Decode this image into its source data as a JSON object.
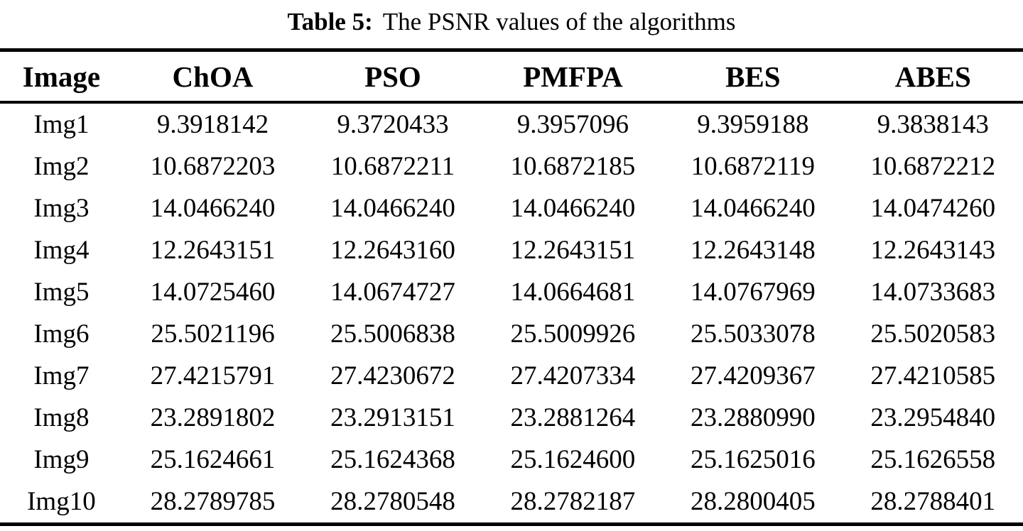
{
  "caption": {
    "label": "Table 5:",
    "text": "The PSNR values of the algorithms"
  },
  "table": {
    "columns": [
      "Image",
      "ChOA",
      "PSO",
      "PMFPA",
      "BES",
      "ABES"
    ],
    "rows": [
      {
        "image": "Img1",
        "values": [
          "9.3918142",
          "9.3720433",
          "9.3957096",
          "9.3959188",
          "9.3838143"
        ]
      },
      {
        "image": "Img2",
        "values": [
          "10.6872203",
          "10.6872211",
          "10.6872185",
          "10.6872119",
          "10.6872212"
        ]
      },
      {
        "image": "Img3",
        "values": [
          "14.0466240",
          "14.0466240",
          "14.0466240",
          "14.0466240",
          "14.0474260"
        ]
      },
      {
        "image": "Img4",
        "values": [
          "12.2643151",
          "12.2643160",
          "12.2643151",
          "12.2643148",
          "12.2643143"
        ]
      },
      {
        "image": "Img5",
        "values": [
          "14.0725460",
          "14.0674727",
          "14.0664681",
          "14.0767969",
          "14.0733683"
        ]
      },
      {
        "image": "Img6",
        "values": [
          "25.5021196",
          "25.5006838",
          "25.5009926",
          "25.5033078",
          "25.5020583"
        ]
      },
      {
        "image": "Img7",
        "values": [
          "27.4215791",
          "27.4230672",
          "27.4207334",
          "27.4209367",
          "27.4210585"
        ]
      },
      {
        "image": "Img8",
        "values": [
          "23.2891802",
          "23.2913151",
          "23.2881264",
          "23.2880990",
          "23.2954840"
        ]
      },
      {
        "image": "Img9",
        "values": [
          "25.1624661",
          "25.1624368",
          "25.1624600",
          "25.1625016",
          "25.1626558"
        ]
      },
      {
        "image": "Img10",
        "values": [
          "28.2789785",
          "28.2780548",
          "28.2782187",
          "28.2800405",
          "28.2788401"
        ]
      }
    ]
  }
}
